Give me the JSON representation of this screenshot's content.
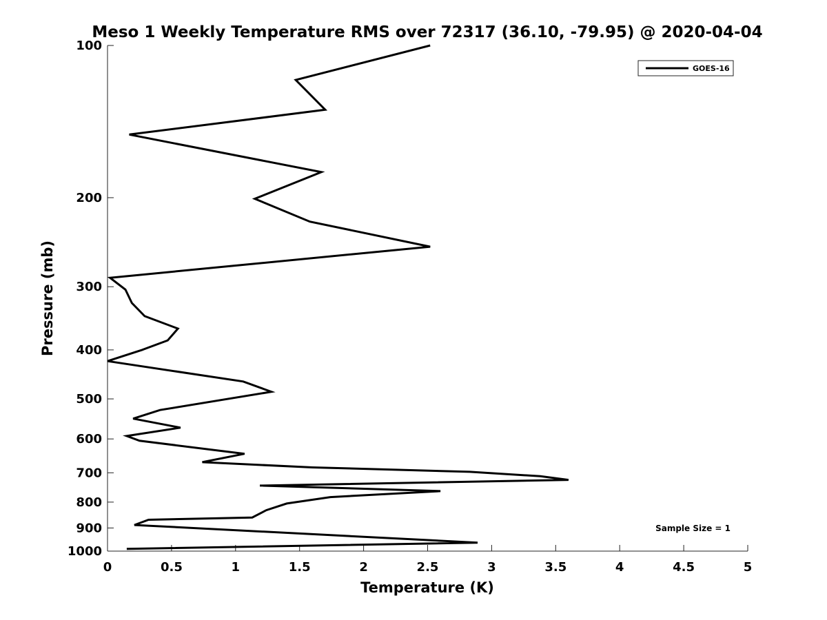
{
  "chart_data": {
    "type": "line",
    "title": "Meso 1 Weekly Temperature RMS over 72317 (36.10, -79.95) @ 2020-04-04",
    "xlabel": "Temperature (K)",
    "ylabel": "Pressure (mb)",
    "xlim": [
      0,
      5
    ],
    "ylim": [
      100,
      1000
    ],
    "y_scale": "log",
    "y_reversed": true,
    "grid": false,
    "legend_position": "top-right",
    "x_ticks": [
      "0",
      "0.5",
      "1",
      "1.5",
      "2",
      "2.5",
      "3",
      "3.5",
      "4",
      "4.5",
      "5"
    ],
    "y_ticks": [
      "100",
      "200",
      "300",
      "400",
      "500",
      "600",
      "700",
      "800",
      "900",
      "1000"
    ],
    "annotation": "Sample Size = 1",
    "series": [
      {
        "name": "GOES-16",
        "color": "#000000",
        "x": [
          2.52,
          1.47,
          1.7,
          0.17,
          1.67,
          1.15,
          1.58,
          2.52,
          0.02,
          0.14,
          0.19,
          0.29,
          0.55,
          0.47,
          0.27,
          0.0,
          1.06,
          1.28,
          0.41,
          0.2,
          0.57,
          0.15,
          0.25,
          1.07,
          0.74,
          1.6,
          2.83,
          3.38,
          3.6,
          1.19,
          2.6,
          1.74,
          1.4,
          1.24,
          1.13,
          0.32,
          0.21,
          2.89,
          0.15
        ],
        "y": [
          100,
          117,
          134,
          150,
          178,
          201,
          223,
          250,
          288,
          304,
          323,
          343,
          363,
          383,
          400,
          421,
          462,
          484,
          526,
          547,
          570,
          592,
          605,
          642,
          667,
          683,
          697,
          711,
          723,
          742,
          761,
          782,
          805,
          830,
          858,
          867,
          888,
          962,
          990
        ]
      }
    ]
  }
}
